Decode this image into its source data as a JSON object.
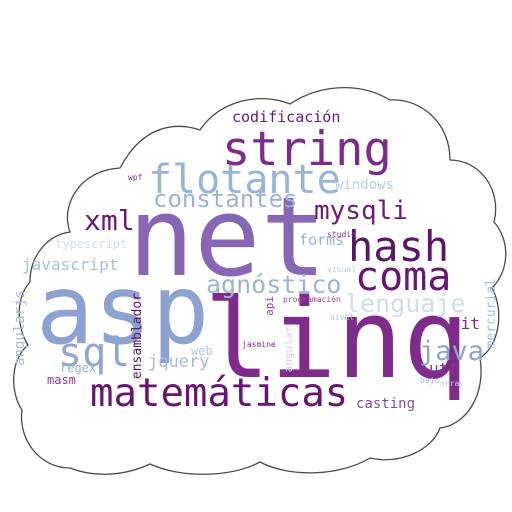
{
  "words": [
    {
      "text": "net",
      "color": "#8766b5"
    },
    {
      "text": "asp",
      "color": "#8da2d0"
    },
    {
      "text": "linq",
      "color": "#7e2b8c"
    },
    {
      "text": "string",
      "color": "#7b2c8a"
    },
    {
      "text": "flotante",
      "color": "#9ab4d9"
    },
    {
      "text": "constantes",
      "color": "#9bb1d9"
    },
    {
      "text": "hash",
      "color": "#5c1466"
    },
    {
      "text": "coma",
      "color": "#6a1574"
    },
    {
      "text": "mysqli",
      "color": "#6d1a78"
    },
    {
      "text": "xml",
      "color": "#6b1877"
    },
    {
      "text": "sql",
      "color": "#8ea6d4"
    },
    {
      "text": "matemáticas",
      "color": "#681570"
    },
    {
      "text": "agnóstico",
      "color": "#9bb4d8"
    },
    {
      "text": "java",
      "color": "#8da4d3"
    },
    {
      "text": "lenguaje",
      "color": "#cfdcee"
    },
    {
      "text": "codificación",
      "color": "#6b1877"
    },
    {
      "text": "windows",
      "color": "#b9cbe6"
    },
    {
      "text": "javascript",
      "color": "#a9bfe0"
    },
    {
      "text": "forms",
      "color": "#9ab0d7"
    },
    {
      "text": "typescript",
      "color": "#d3dff0"
    },
    {
      "text": "jquery",
      "color": "#a3b8dd"
    },
    {
      "text": "web",
      "color": "#b3c6e4"
    },
    {
      "text": "regex",
      "color": "#9caed6"
    },
    {
      "text": "masm",
      "color": "#8a3d93"
    },
    {
      "text": "git",
      "color": "#7a2a86"
    },
    {
      "text": "utf",
      "color": "#7c3a8c"
    },
    {
      "text": "casting",
      "color": "#8a4b99"
    },
    {
      "text": "angularjs",
      "color": "#a6bbde"
    },
    {
      "text": "ensamblador",
      "color": "#5c1466"
    },
    {
      "text": "api",
      "color": "#8c4497"
    },
    {
      "text": "angular",
      "color": "#c4d4ec"
    },
    {
      "text": "mercurial",
      "color": "#a7bcdf"
    },
    {
      "text": "wpf",
      "color": "#7c2a88"
    },
    {
      "text": "studio",
      "color": "#8b3a95"
    },
    {
      "text": "visual",
      "color": "#b8c9e6"
    },
    {
      "text": "programación",
      "color": "#8e4c99"
    },
    {
      "text": "nivel",
      "color": "#a8bcdf"
    },
    {
      "text": "jasmine",
      "color": "#7c2a88"
    },
    {
      "text": "bajo",
      "color": "#aabce0"
    },
    {
      "text": "array",
      "color": "#c2d1eb"
    }
  ]
}
